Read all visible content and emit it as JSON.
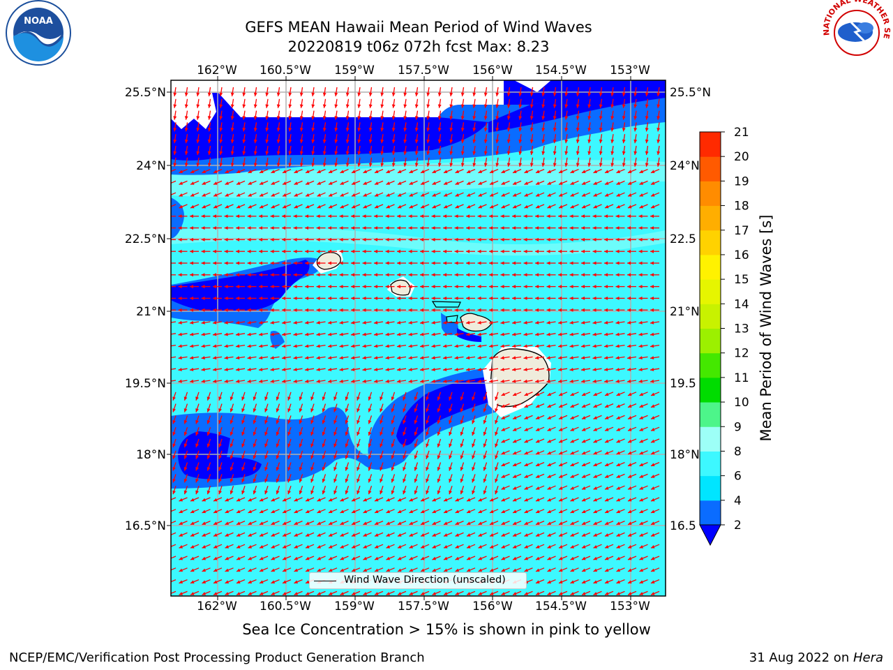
{
  "title": {
    "line1": "GEFS MEAN Hawaii Mean Period of Wind Waves",
    "line2": "20220819 t06z 072h fcst   Max: 8.23"
  },
  "axes": {
    "lon_ticks": [
      "162°W",
      "160.5°W",
      "159°W",
      "157.5°W",
      "156°W",
      "154.5°W",
      "153°W"
    ],
    "lat_ticks": [
      "25.5°N",
      "24°N",
      "22.5°N",
      "21°N",
      "19.5°N",
      "18°N",
      "16.5°N"
    ],
    "right_lat_ticks": [
      "25.5°N",
      "24°N",
      "22.5",
      "21°N",
      "19.5",
      "18°N",
      "16.5"
    ]
  },
  "legend": {
    "label": "Wind Wave Direction (unscaled)"
  },
  "colorbar": {
    "label": "Mean Period of Wind Waves [s]",
    "ticks": [
      "2",
      "4",
      "6",
      "8",
      "9",
      "10",
      "11",
      "12",
      "13",
      "14",
      "15",
      "16",
      "17",
      "18",
      "19",
      "20",
      "21"
    ],
    "colors": [
      "#0a6cff",
      "#00e5ff",
      "#3df8ff",
      "#9dfff7",
      "#4df58a",
      "#00dc00",
      "#44e800",
      "#9cf000",
      "#c8f200",
      "#e6f500",
      "#fff200",
      "#ffd200",
      "#ffae00",
      "#ff8c00",
      "#ff5a00",
      "#ff2a00"
    ],
    "under_color": "#0000ff"
  },
  "sea_ice_note": "Sea Ice Concentration > 15% is shown in pink to yellow",
  "footer": {
    "left": "NCEP/EMC/Verification Post Processing Product Generation Branch",
    "right_date": "31 Aug 2022 on ",
    "right_host": "Hera"
  },
  "logos": {
    "left": "NOAA",
    "right": "NATIONAL WEATHER SERVICE"
  },
  "colors": {
    "ocean_light": "#3df8ff",
    "ocean_mid": "#0a6cff",
    "ocean_dark": "#0000ff",
    "land": "#efecdc",
    "arrows": "#ff0000"
  }
}
